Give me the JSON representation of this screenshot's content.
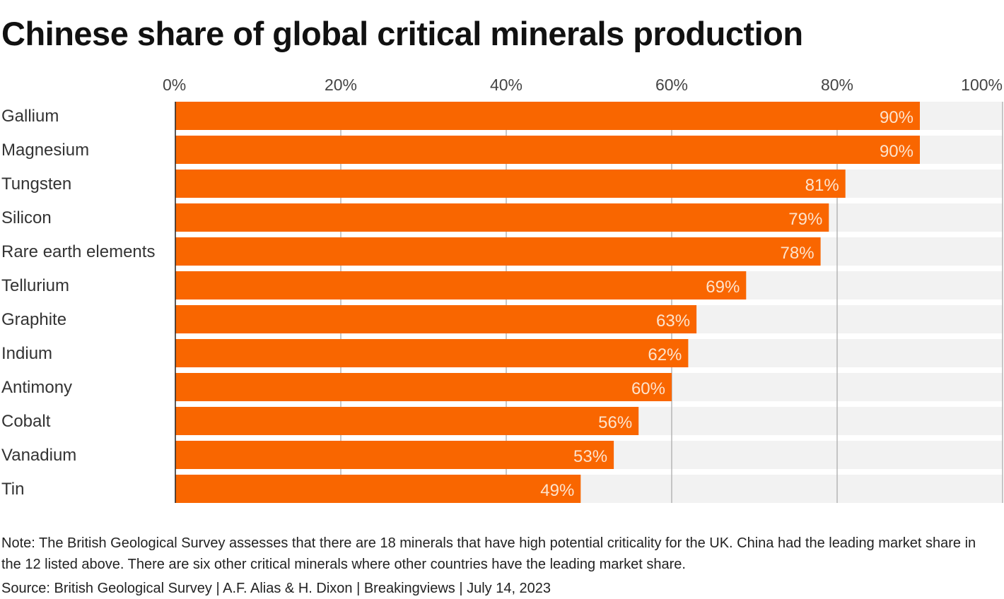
{
  "chart_data": {
    "type": "bar",
    "orientation": "horizontal",
    "title": "Chinese share of global critical minerals production",
    "categories": [
      "Gallium",
      "Magnesium",
      "Tungsten",
      "Silicon",
      "Rare earth elements",
      "Tellurium",
      "Graphite",
      "Indium",
      "Antimony",
      "Cobalt",
      "Vanadium",
      "Tin"
    ],
    "values": [
      90,
      90,
      81,
      79,
      78,
      69,
      63,
      62,
      60,
      56,
      53,
      49
    ],
    "data_labels": [
      "90%",
      "90%",
      "81%",
      "79%",
      "78%",
      "69%",
      "63%",
      "62%",
      "60%",
      "56%",
      "53%",
      "49%"
    ],
    "xlim": [
      0,
      100
    ],
    "x_ticks": [
      "0%",
      "20%",
      "40%",
      "60%",
      "80%",
      "100%"
    ],
    "x_tick_values": [
      0,
      20,
      40,
      60,
      80,
      100
    ],
    "axis_position": "top",
    "grid": true,
    "colors": {
      "bar": "#f96600",
      "background_bar": "#f2f2f2",
      "grid": "#b5b5b5",
      "label": "#fde3cc"
    }
  },
  "footer": {
    "note": "Note: The British Geological Survey assesses that there are 18 minerals that have high potential criticality for the UK. China had the leading market share in the 12 listed above. There are six other critical minerals where other countries have the leading market share.",
    "source": "Source: British Geological Survey | A.F. Alias & H. Dixon | Breakingviews | July 14, 2023"
  }
}
